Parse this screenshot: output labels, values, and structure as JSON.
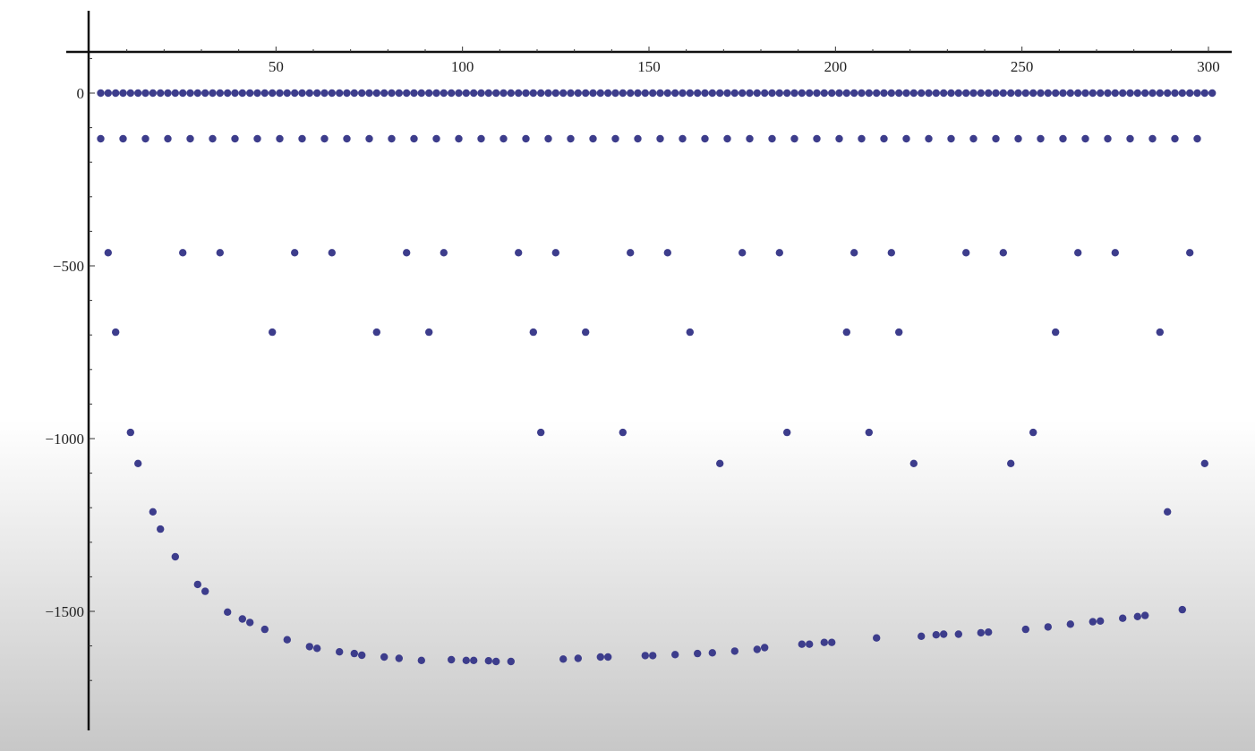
{
  "chart_data": {
    "type": "scatter",
    "title": "",
    "xlabel": "",
    "ylabel": "",
    "xlim": [
      0,
      306
    ],
    "ylim": [
      -1760,
      180
    ],
    "x_ticks": [
      50,
      100,
      150,
      200,
      250,
      300
    ],
    "x_tick_labels": [
      "50",
      "100",
      "150",
      "200",
      "250",
      "300"
    ],
    "y_ticks": [
      0,
      -500,
      -1000,
      -1500
    ],
    "y_tick_labels": [
      "0",
      "−500",
      "−1000",
      "−1500"
    ],
    "grid": false,
    "legend": "none",
    "marker_color": "#3d3d8c",
    "series": [
      {
        "points": [
          [
            3,
            0
          ],
          [
            5,
            0
          ],
          [
            7,
            0
          ],
          [
            9,
            0
          ],
          [
            11,
            0
          ],
          [
            13,
            0
          ],
          [
            15,
            0
          ],
          [
            17,
            0
          ],
          [
            19,
            0
          ],
          [
            21,
            0
          ],
          [
            23,
            0
          ],
          [
            25,
            0
          ],
          [
            27,
            0
          ],
          [
            29,
            0
          ],
          [
            31,
            0
          ],
          [
            33,
            0
          ],
          [
            35,
            0
          ],
          [
            37,
            0
          ],
          [
            39,
            0
          ],
          [
            41,
            0
          ],
          [
            43,
            0
          ],
          [
            45,
            0
          ],
          [
            47,
            0
          ],
          [
            49,
            0
          ],
          [
            51,
            0
          ],
          [
            53,
            0
          ],
          [
            55,
            0
          ],
          [
            57,
            0
          ],
          [
            59,
            0
          ],
          [
            61,
            0
          ],
          [
            63,
            0
          ],
          [
            65,
            0
          ],
          [
            67,
            0
          ],
          [
            69,
            0
          ],
          [
            71,
            0
          ],
          [
            73,
            0
          ],
          [
            75,
            0
          ],
          [
            77,
            0
          ],
          [
            79,
            0
          ],
          [
            81,
            0
          ],
          [
            83,
            0
          ],
          [
            85,
            0
          ],
          [
            87,
            0
          ],
          [
            89,
            0
          ],
          [
            91,
            0
          ],
          [
            93,
            0
          ],
          [
            95,
            0
          ],
          [
            97,
            0
          ],
          [
            99,
            0
          ],
          [
            101,
            0
          ],
          [
            103,
            0
          ],
          [
            105,
            0
          ],
          [
            107,
            0
          ],
          [
            109,
            0
          ],
          [
            111,
            0
          ],
          [
            113,
            0
          ],
          [
            115,
            0
          ],
          [
            117,
            0
          ],
          [
            119,
            0
          ],
          [
            121,
            0
          ],
          [
            123,
            0
          ],
          [
            125,
            0
          ],
          [
            127,
            0
          ],
          [
            129,
            0
          ],
          [
            131,
            0
          ],
          [
            133,
            0
          ],
          [
            135,
            0
          ],
          [
            137,
            0
          ],
          [
            139,
            0
          ],
          [
            141,
            0
          ],
          [
            143,
            0
          ],
          [
            145,
            0
          ],
          [
            147,
            0
          ],
          [
            149,
            0
          ],
          [
            151,
            0
          ],
          [
            153,
            0
          ],
          [
            155,
            0
          ],
          [
            157,
            0
          ],
          [
            159,
            0
          ],
          [
            161,
            0
          ],
          [
            163,
            0
          ],
          [
            165,
            0
          ],
          [
            167,
            0
          ],
          [
            169,
            0
          ],
          [
            171,
            0
          ],
          [
            173,
            0
          ],
          [
            175,
            0
          ],
          [
            177,
            0
          ],
          [
            179,
            0
          ],
          [
            181,
            0
          ],
          [
            183,
            0
          ],
          [
            185,
            0
          ],
          [
            187,
            0
          ],
          [
            189,
            0
          ],
          [
            191,
            0
          ],
          [
            193,
            0
          ],
          [
            195,
            0
          ],
          [
            197,
            0
          ],
          [
            199,
            0
          ],
          [
            201,
            0
          ],
          [
            203,
            0
          ],
          [
            205,
            0
          ],
          [
            207,
            0
          ],
          [
            209,
            0
          ],
          [
            211,
            0
          ],
          [
            213,
            0
          ],
          [
            215,
            0
          ],
          [
            217,
            0
          ],
          [
            219,
            0
          ],
          [
            221,
            0
          ],
          [
            223,
            0
          ],
          [
            225,
            0
          ],
          [
            227,
            0
          ],
          [
            229,
            0
          ],
          [
            231,
            0
          ],
          [
            233,
            0
          ],
          [
            235,
            0
          ],
          [
            237,
            0
          ],
          [
            239,
            0
          ],
          [
            241,
            0
          ],
          [
            243,
            0
          ],
          [
            245,
            0
          ],
          [
            247,
            0
          ],
          [
            249,
            0
          ],
          [
            251,
            0
          ],
          [
            253,
            0
          ],
          [
            255,
            0
          ],
          [
            257,
            0
          ],
          [
            259,
            0
          ],
          [
            261,
            0
          ],
          [
            263,
            0
          ],
          [
            265,
            0
          ],
          [
            267,
            0
          ],
          [
            269,
            0
          ],
          [
            271,
            0
          ],
          [
            273,
            0
          ],
          [
            275,
            0
          ],
          [
            277,
            0
          ],
          [
            279,
            0
          ],
          [
            281,
            0
          ],
          [
            283,
            0
          ],
          [
            285,
            0
          ],
          [
            287,
            0
          ],
          [
            289,
            0
          ],
          [
            291,
            0
          ],
          [
            293,
            0
          ],
          [
            295,
            0
          ],
          [
            297,
            0
          ],
          [
            299,
            0
          ],
          [
            301,
            0
          ],
          [
            3,
            -132
          ],
          [
            9,
            -132
          ],
          [
            15,
            -132
          ],
          [
            21,
            -132
          ],
          [
            27,
            -132
          ],
          [
            33,
            -132
          ],
          [
            39,
            -132
          ],
          [
            45,
            -132
          ],
          [
            51,
            -132
          ],
          [
            57,
            -132
          ],
          [
            63,
            -132
          ],
          [
            69,
            -132
          ],
          [
            75,
            -132
          ],
          [
            81,
            -132
          ],
          [
            87,
            -132
          ],
          [
            93,
            -132
          ],
          [
            99,
            -132
          ],
          [
            105,
            -132
          ],
          [
            111,
            -132
          ],
          [
            117,
            -132
          ],
          [
            123,
            -132
          ],
          [
            129,
            -132
          ],
          [
            135,
            -132
          ],
          [
            141,
            -132
          ],
          [
            147,
            -132
          ],
          [
            153,
            -132
          ],
          [
            159,
            -132
          ],
          [
            165,
            -132
          ],
          [
            171,
            -132
          ],
          [
            177,
            -132
          ],
          [
            183,
            -132
          ],
          [
            189,
            -132
          ],
          [
            195,
            -132
          ],
          [
            201,
            -132
          ],
          [
            207,
            -132
          ],
          [
            213,
            -132
          ],
          [
            219,
            -132
          ],
          [
            225,
            -132
          ],
          [
            231,
            -132
          ],
          [
            237,
            -132
          ],
          [
            243,
            -132
          ],
          [
            249,
            -132
          ],
          [
            255,
            -132
          ],
          [
            261,
            -132
          ],
          [
            267,
            -132
          ],
          [
            273,
            -132
          ],
          [
            279,
            -132
          ],
          [
            285,
            -132
          ],
          [
            291,
            -132
          ],
          [
            297,
            -132
          ],
          [
            5,
            -462
          ],
          [
            25,
            -462
          ],
          [
            35,
            -462
          ],
          [
            55,
            -462
          ],
          [
            65,
            -462
          ],
          [
            85,
            -462
          ],
          [
            95,
            -462
          ],
          [
            115,
            -462
          ],
          [
            125,
            -462
          ],
          [
            145,
            -462
          ],
          [
            155,
            -462
          ],
          [
            175,
            -462
          ],
          [
            185,
            -462
          ],
          [
            205,
            -462
          ],
          [
            215,
            -462
          ],
          [
            235,
            -462
          ],
          [
            245,
            -462
          ],
          [
            265,
            -462
          ],
          [
            275,
            -462
          ],
          [
            295,
            -462
          ],
          [
            7,
            -692
          ],
          [
            49,
            -692
          ],
          [
            77,
            -692
          ],
          [
            91,
            -692
          ],
          [
            119,
            -692
          ],
          [
            133,
            -692
          ],
          [
            161,
            -692
          ],
          [
            203,
            -692
          ],
          [
            217,
            -692
          ],
          [
            259,
            -692
          ],
          [
            287,
            -692
          ],
          [
            11,
            -982
          ],
          [
            121,
            -982
          ],
          [
            143,
            -982
          ],
          [
            187,
            -982
          ],
          [
            209,
            -982
          ],
          [
            253,
            -982
          ],
          [
            13,
            -1072
          ],
          [
            169,
            -1072
          ],
          [
            221,
            -1072
          ],
          [
            247,
            -1072
          ],
          [
            299,
            -1072
          ],
          [
            17,
            -1212
          ],
          [
            19,
            -1262
          ],
          [
            23,
            -1342
          ],
          [
            29,
            -1422
          ],
          [
            31,
            -1442
          ],
          [
            37,
            -1502
          ],
          [
            41,
            -1522
          ],
          [
            43,
            -1532
          ],
          [
            47,
            -1552
          ],
          [
            53,
            -1582
          ],
          [
            59,
            -1602
          ],
          [
            61,
            -1607
          ],
          [
            67,
            -1617
          ],
          [
            71,
            -1622
          ],
          [
            73,
            -1627
          ],
          [
            79,
            -1632
          ],
          [
            83,
            -1636
          ],
          [
            89,
            -1642
          ],
          [
            97,
            -1640
          ],
          [
            101,
            -1642
          ],
          [
            103,
            -1642
          ],
          [
            107,
            -1643
          ],
          [
            109,
            -1645
          ],
          [
            113,
            -1645
          ],
          [
            127,
            -1638
          ],
          [
            131,
            -1636
          ],
          [
            137,
            -1632
          ],
          [
            139,
            -1632
          ],
          [
            149,
            -1628
          ],
          [
            151,
            -1628
          ],
          [
            157,
            -1625
          ],
          [
            163,
            -1622
          ],
          [
            167,
            -1620
          ],
          [
            173,
            -1615
          ],
          [
            179,
            -1610
          ],
          [
            181,
            -1605
          ],
          [
            191,
            -1595
          ],
          [
            193,
            -1595
          ],
          [
            197,
            -1590
          ],
          [
            199,
            -1590
          ],
          [
            211,
            -1577
          ],
          [
            223,
            -1572
          ],
          [
            227,
            -1568
          ],
          [
            229,
            -1566
          ],
          [
            233,
            -1566
          ],
          [
            239,
            -1562
          ],
          [
            241,
            -1560
          ],
          [
            251,
            -1552
          ],
          [
            257,
            -1545
          ],
          [
            263,
            -1537
          ],
          [
            269,
            -1530
          ],
          [
            271,
            -1528
          ],
          [
            277,
            -1520
          ],
          [
            281,
            -1515
          ],
          [
            283,
            -1512
          ],
          [
            289,
            -1212
          ],
          [
            293,
            -1495
          ]
        ]
      }
    ]
  }
}
